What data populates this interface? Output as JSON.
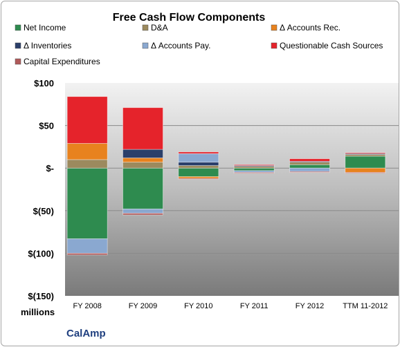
{
  "chart_data": {
    "type": "bar",
    "stacked": true,
    "title": "Free Cash Flow Components",
    "units_label": "millions",
    "company": "CalAmp",
    "categories": [
      "FY 2008",
      "FY 2009",
      "FY 2010",
      "FY 2011",
      "FY 2012",
      "TTM 11-2012"
    ],
    "ylim": [
      -150,
      100
    ],
    "y_ticks": [
      100,
      50,
      0,
      -50,
      -100,
      -150
    ],
    "y_tick_labels": [
      "$100",
      "$50",
      "$-",
      "$(50)",
      "$(100)",
      "$(150)"
    ],
    "legend_position": "top",
    "series": [
      {
        "name": "Net Income",
        "color": "#2e8b4f",
        "values": [
          -83,
          -48,
          -10,
          -3,
          4,
          14
        ]
      },
      {
        "name": "D&A",
        "color": "#9c8a5e",
        "values": [
          10,
          7,
          3,
          2,
          3,
          2
        ]
      },
      {
        "name": "Δ Accounts Rec.",
        "color": "#e8821e",
        "values": [
          19,
          5,
          -2,
          0,
          0,
          -5
        ]
      },
      {
        "name": "Δ Inventories",
        "color": "#2b3f6a",
        "values": [
          0,
          10,
          4,
          1,
          1,
          1
        ]
      },
      {
        "name": "Δ Accounts Pay.",
        "color": "#8aa8d0",
        "values": [
          -17,
          -5,
          10,
          -2,
          -4,
          0
        ]
      },
      {
        "name": "Questionable Cash Sources",
        "color": "#e5232b",
        "values": [
          55,
          49,
          2,
          1,
          3,
          1
        ]
      },
      {
        "name": "Capital Expenditures",
        "color": "#b05a5a",
        "values": [
          -2,
          -2,
          -1,
          -1,
          -1,
          -1
        ]
      }
    ]
  }
}
